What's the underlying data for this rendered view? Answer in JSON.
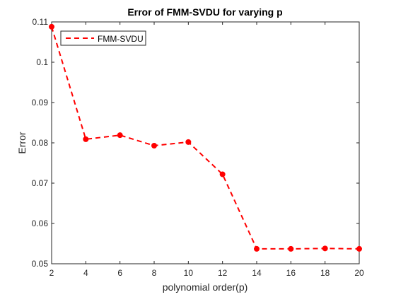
{
  "chart_data": {
    "type": "line",
    "title": "Error of FMM-SVDU for varying p",
    "xlabel": "polynomial order(p)",
    "ylabel": "Error",
    "xlim": [
      2,
      20
    ],
    "ylim": [
      0.05,
      0.11
    ],
    "xticks": [
      2,
      4,
      6,
      8,
      10,
      12,
      14,
      16,
      18,
      20
    ],
    "yticks": [
      0.05,
      0.06,
      0.07,
      0.08,
      0.09,
      0.1,
      0.11
    ],
    "ytick_labels": [
      "0.05",
      "0.06",
      "0.07",
      "0.08",
      "0.09",
      "0.1",
      "0.11"
    ],
    "grid": false,
    "legend_position": "top-left",
    "series": [
      {
        "name": "FMM-SVDU",
        "color": "#ff0000",
        "line_style": "dashed",
        "marker": "circle",
        "x": [
          2,
          4,
          6,
          8,
          10,
          12,
          14,
          16,
          18,
          20
        ],
        "y": [
          0.1088,
          0.0809,
          0.0819,
          0.0793,
          0.0802,
          0.0722,
          0.0537,
          0.0537,
          0.0538,
          0.0537
        ]
      }
    ]
  }
}
